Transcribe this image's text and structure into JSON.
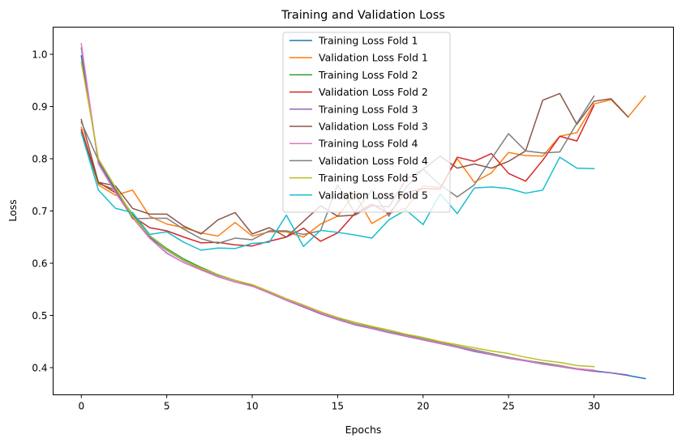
{
  "chart_data": {
    "type": "line",
    "title": "Training and Validation Loss",
    "xlabel": "Epochs",
    "ylabel": "Loss",
    "xlim": [
      -1.65,
      34.65
    ],
    "ylim": [
      0.348,
      1.052
    ],
    "xticks": [
      0,
      5,
      10,
      15,
      20,
      25,
      30
    ],
    "yticks": [
      0.4,
      0.5,
      0.6,
      0.7,
      0.8,
      0.9,
      1.0
    ],
    "xtick_labels": [
      "0",
      "5",
      "10",
      "15",
      "20",
      "25",
      "30"
    ],
    "ytick_labels": [
      "0.4",
      "0.5",
      "0.6",
      "0.7",
      "0.8",
      "0.9",
      "1.0"
    ],
    "grid": false,
    "legend_position": "top-center",
    "series": [
      {
        "name": "Training Loss Fold 1",
        "color": "#1f77b4",
        "values": [
          0.997,
          0.795,
          0.74,
          0.69,
          0.65,
          0.625,
          0.605,
          0.59,
          0.577,
          0.567,
          0.558,
          0.545,
          0.53,
          0.518,
          0.505,
          0.493,
          0.483,
          0.476,
          0.469,
          0.462,
          0.455,
          0.447,
          0.44,
          0.433,
          0.426,
          0.418,
          0.414,
          0.408,
          0.403,
          0.398,
          0.394,
          0.39,
          0.385,
          0.379
        ]
      },
      {
        "name": "Validation Loss Fold 1",
        "color": "#ff7f0e",
        "values": [
          0.86,
          0.75,
          0.73,
          0.74,
          0.69,
          0.675,
          0.668,
          0.658,
          0.652,
          0.678,
          0.652,
          0.66,
          0.66,
          0.65,
          0.675,
          0.69,
          0.733,
          0.676,
          0.695,
          0.705,
          0.748,
          0.745,
          0.8,
          0.755,
          0.773,
          0.812,
          0.806,
          0.805,
          0.843,
          0.85,
          0.905,
          0.913,
          0.88,
          0.92
        ]
      },
      {
        "name": "Training Loss Fold 2",
        "color": "#2ca02c",
        "values": [
          0.85,
          0.753,
          0.74,
          0.693,
          0.653,
          0.628,
          0.608,
          0.592,
          0.578,
          0.567,
          0.558,
          0.545,
          0.531,
          0.519,
          0.506,
          0.494,
          0.484,
          0.477,
          0.469,
          0.462,
          0.455,
          0.448,
          0.441,
          0.434,
          0.427,
          0.42,
          0.414,
          0.409,
          0.404,
          0.398,
          0.395
        ]
      },
      {
        "name": "Validation Loss Fold 2",
        "color": "#d62728",
        "values": [
          0.855,
          0.755,
          0.735,
          0.69,
          0.668,
          0.662,
          0.65,
          0.639,
          0.64,
          0.635,
          0.633,
          0.642,
          0.65,
          0.667,
          0.642,
          0.658,
          0.695,
          0.713,
          0.695,
          0.735,
          0.743,
          0.742,
          0.803,
          0.795,
          0.81,
          0.772,
          0.757,
          0.797,
          0.843,
          0.834,
          0.902
        ]
      },
      {
        "name": "Training Loss Fold 3",
        "color": "#9467bd",
        "values": [
          1.012,
          0.792,
          0.737,
          0.688,
          0.648,
          0.619,
          0.601,
          0.588,
          0.574,
          0.564,
          0.556,
          0.543,
          0.529,
          0.516,
          0.503,
          0.492,
          0.482,
          0.475,
          0.467,
          0.46,
          0.453,
          0.446,
          0.439,
          0.431,
          0.425,
          0.418,
          0.413,
          0.407,
          0.402,
          0.397,
          0.393,
          0.39,
          0.386
        ]
      },
      {
        "name": "Validation Loss Fold 3",
        "color": "#8c564b",
        "values": [
          0.875,
          0.755,
          0.748,
          0.705,
          0.694,
          0.694,
          0.671,
          0.656,
          0.683,
          0.697,
          0.656,
          0.668,
          0.65,
          0.68,
          0.71,
          0.69,
          0.692,
          0.71,
          0.708,
          0.76,
          0.78,
          0.805,
          0.782,
          0.79,
          0.782,
          0.795,
          0.815,
          0.912,
          0.925,
          0.866,
          0.91,
          0.915,
          0.88
        ]
      },
      {
        "name": "Training Loss Fold 4",
        "color": "#e377c2",
        "values": [
          1.02,
          0.79,
          0.735,
          0.687,
          0.648,
          0.62,
          0.601,
          0.587,
          0.574,
          0.564,
          0.556,
          0.544,
          0.53,
          0.518,
          0.505,
          0.493,
          0.483,
          0.476,
          0.468,
          0.461,
          0.454,
          0.447,
          0.44,
          0.433,
          0.426,
          0.419,
          0.414,
          0.408,
          0.403,
          0.398,
          0.395
        ]
      },
      {
        "name": "Validation Loss Fold 4",
        "color": "#7f7f7f",
        "values": [
          0.87,
          0.797,
          0.745,
          0.685,
          0.686,
          0.686,
          0.665,
          0.647,
          0.638,
          0.648,
          0.645,
          0.662,
          0.662,
          0.655,
          0.662,
          0.75,
          0.697,
          0.74,
          0.69,
          0.745,
          0.78,
          0.75,
          0.727,
          0.75,
          0.8,
          0.848,
          0.815,
          0.811,
          0.813,
          0.868,
          0.92
        ]
      },
      {
        "name": "Training Loss Fold 5",
        "color": "#bcbd22",
        "values": [
          0.985,
          0.8,
          0.745,
          0.69,
          0.653,
          0.626,
          0.606,
          0.59,
          0.578,
          0.567,
          0.559,
          0.546,
          0.532,
          0.52,
          0.507,
          0.496,
          0.487,
          0.479,
          0.472,
          0.464,
          0.458,
          0.45,
          0.444,
          0.438,
          0.432,
          0.427,
          0.42,
          0.414,
          0.41,
          0.404,
          0.402
        ]
      },
      {
        "name": "Validation Loss Fold 5",
        "color": "#17becf",
        "values": [
          0.85,
          0.74,
          0.705,
          0.697,
          0.655,
          0.66,
          0.64,
          0.625,
          0.629,
          0.628,
          0.638,
          0.64,
          0.692,
          0.632,
          0.663,
          0.659,
          0.654,
          0.648,
          0.683,
          0.702,
          0.674,
          0.733,
          0.695,
          0.744,
          0.746,
          0.743,
          0.734,
          0.74,
          0.803,
          0.782,
          0.781
        ]
      }
    ]
  }
}
